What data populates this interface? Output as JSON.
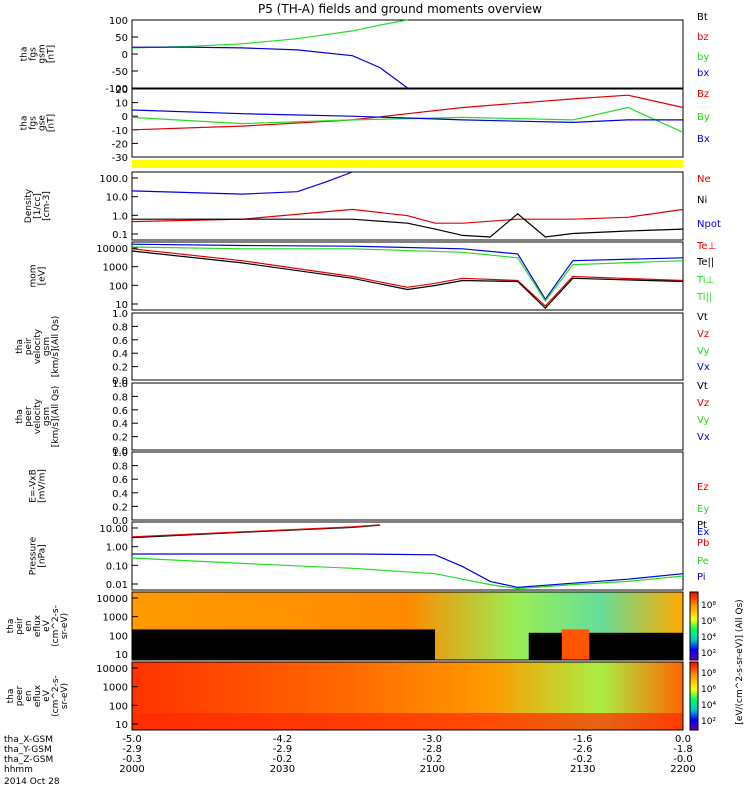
{
  "title": "P5 (TH-A) fields and ground moments overview",
  "colors": {
    "black": "#000000",
    "red": "#e00000",
    "green": "#22dd22",
    "blue": "#0000dd",
    "yellow": "#ffff00"
  },
  "chart_data": [
    {
      "type": "line",
      "id": "fgs_gsm",
      "ylabel": [
        "tha",
        "fgs",
        "gsm",
        "[nT]"
      ],
      "ylim": [
        -100,
        100
      ],
      "yticks": [
        "100",
        "50",
        "0",
        "-50",
        "-100"
      ],
      "legend": [
        "Bt",
        "bz",
        "by",
        "bx"
      ],
      "series": [
        {
          "name": "by",
          "color": "green",
          "x": [
            0,
            10,
            20,
            30,
            40,
            45,
            50
          ],
          "y": [
            18,
            22,
            30,
            45,
            68,
            85,
            100
          ]
        },
        {
          "name": "bx",
          "color": "blue",
          "x": [
            0,
            10,
            20,
            30,
            40,
            45,
            50
          ],
          "y": [
            20,
            20,
            18,
            12,
            -5,
            -40,
            -100
          ]
        }
      ]
    },
    {
      "type": "line",
      "id": "fgs_gse",
      "ylabel": [
        "tha",
        "fgs",
        "gse",
        "[nT]"
      ],
      "ylim": [
        -35,
        20
      ],
      "yticks": [
        "20",
        "10",
        "0",
        "-10",
        "-20",
        "-30"
      ],
      "legend": [
        "Bz",
        "By",
        "Bx"
      ],
      "series": [
        {
          "name": "Bz",
          "color": "red",
          "x": [
            0,
            20,
            40,
            60,
            80,
            90,
            100
          ],
          "y": [
            -13,
            -10,
            -5,
            5,
            12,
            15,
            5
          ]
        },
        {
          "name": "By",
          "color": "green",
          "x": [
            0,
            20,
            40,
            60,
            80,
            90,
            100
          ],
          "y": [
            -3,
            -8,
            -5,
            -3,
            -5,
            5,
            -15
          ]
        },
        {
          "name": "Bx",
          "color": "blue",
          "x": [
            0,
            20,
            40,
            60,
            80,
            90,
            100
          ],
          "y": [
            3,
            0,
            -2,
            -5,
            -7,
            -5,
            -5
          ]
        }
      ]
    },
    {
      "type": "line",
      "id": "density",
      "ylabel": [
        "Density",
        "[1/cc]",
        "[cm-3]"
      ],
      "yscale": "log",
      "ylim": [
        0.07,
        200
      ],
      "yticks": [
        "100.0",
        "10.0",
        "1.0",
        "0.1"
      ],
      "legend": [
        "Ne",
        "Ni",
        "Npot"
      ],
      "series": [
        {
          "name": "Npot",
          "color": "blue",
          "x": [
            0,
            20,
            30,
            35,
            40
          ],
          "y": [
            22,
            15,
            20,
            60,
            200
          ]
        },
        {
          "name": "Ne",
          "color": "red",
          "x": [
            0,
            20,
            40,
            50,
            55,
            60,
            70,
            80,
            90,
            100
          ],
          "y": [
            0.6,
            0.8,
            2.5,
            1.2,
            0.5,
            0.5,
            0.8,
            0.8,
            1.0,
            2.5
          ]
        },
        {
          "name": "Ni",
          "color": "black",
          "x": [
            0,
            20,
            40,
            50,
            55,
            60,
            65,
            70,
            75,
            80,
            90,
            100
          ],
          "y": [
            0.8,
            0.8,
            0.8,
            0.5,
            0.25,
            0.12,
            0.1,
            1.5,
            0.1,
            0.15,
            0.2,
            0.25
          ]
        }
      ]
    },
    {
      "type": "line",
      "id": "temperature",
      "ylabel": [
        "mom",
        "[eV]"
      ],
      "yscale": "log",
      "ylim": [
        10,
        10000
      ],
      "yticks": [
        "10000",
        "1000",
        "100",
        "10"
      ],
      "legend": [
        "Te⊥",
        "Te||",
        "Ti⊥",
        "Ti||"
      ],
      "series": [
        {
          "name": "Ti||",
          "color": "blue",
          "x": [
            0,
            20,
            40,
            60,
            70,
            75,
            80,
            100
          ],
          "y": [
            8000,
            7000,
            6500,
            5000,
            3000,
            30,
            1500,
            2000
          ]
        },
        {
          "name": "Ti⊥",
          "color": "green",
          "x": [
            0,
            20,
            40,
            60,
            70,
            75,
            80,
            100
          ],
          "y": [
            6000,
            5000,
            5000,
            3500,
            2000,
            25,
            1000,
            1500
          ]
        },
        {
          "name": "Te⊥",
          "color": "red",
          "x": [
            0,
            20,
            40,
            50,
            55,
            60,
            70,
            75,
            80,
            100
          ],
          "y": [
            5000,
            1500,
            300,
            100,
            150,
            250,
            200,
            15,
            300,
            200
          ]
        },
        {
          "name": "Te||",
          "color": "black",
          "x": [
            0,
            20,
            40,
            50,
            55,
            60,
            70,
            75,
            80,
            100
          ],
          "y": [
            4000,
            1200,
            250,
            80,
            120,
            200,
            180,
            12,
            250,
            180
          ]
        }
      ]
    },
    {
      "type": "line",
      "id": "peir_velocity",
      "ylabel": [
        "tha",
        "peir",
        "velocity",
        "gsm",
        "[km/s](All Qs)"
      ],
      "ylim": [
        0,
        1
      ],
      "yticks": [
        "1.0",
        "0.8",
        "0.6",
        "0.4",
        "0.2",
        "0.0"
      ],
      "legend": [
        "Vt",
        "Vz",
        "Vy",
        "Vx"
      ],
      "series": []
    },
    {
      "type": "line",
      "id": "peer_velocity",
      "ylabel": [
        "tha",
        "peer",
        "velocity",
        "gsm",
        "[km/s](All Qs)"
      ],
      "ylim": [
        0,
        1
      ],
      "yticks": [
        "1.0",
        "0.8",
        "0.6",
        "0.4",
        "0.2",
        "0.0"
      ],
      "legend": [
        "Vt",
        "Vz",
        "Vy",
        "Vx"
      ],
      "series": []
    },
    {
      "type": "line",
      "id": "exb",
      "ylabel": [
        "E=-VxB",
        "[mV/m]"
      ],
      "ylim": [
        0,
        1
      ],
      "yticks": [
        "1.0",
        "0.8",
        "0.6",
        "0.4",
        "0.2",
        "0.0"
      ],
      "legend": [
        "Ez",
        "Ey",
        "Ex"
      ],
      "series": []
    },
    {
      "type": "line",
      "id": "pressure",
      "ylabel": [
        "Pressure",
        "[nPa]"
      ],
      "yscale": "log",
      "ylim": [
        0.005,
        30
      ],
      "yticks": [
        "10.00",
        "1.00",
        "0.10",
        "0.01"
      ],
      "legend": [
        "Pt",
        "Pb",
        "Pe",
        "Pi"
      ],
      "series": [
        {
          "name": "Pt",
          "color": "black",
          "x": [
            0,
            20,
            40,
            45
          ],
          "y": [
            4,
            8,
            15,
            20
          ]
        },
        {
          "name": "Pb",
          "color": "red",
          "x": [
            0,
            20,
            40,
            45
          ],
          "y": [
            4.5,
            8.5,
            16,
            21
          ]
        },
        {
          "name": "Pi",
          "color": "blue",
          "x": [
            0,
            20,
            40,
            55,
            60,
            65,
            70,
            80,
            90,
            100
          ],
          "y": [
            0.5,
            0.5,
            0.5,
            0.45,
            0.1,
            0.015,
            0.007,
            0.012,
            0.02,
            0.04
          ]
        },
        {
          "name": "Pe",
          "color": "green",
          "x": [
            0,
            20,
            40,
            55,
            60,
            65,
            70,
            80,
            90,
            100
          ],
          "y": [
            0.3,
            0.15,
            0.08,
            0.04,
            0.02,
            0.01,
            0.006,
            0.01,
            0.015,
            0.03
          ]
        }
      ]
    },
    {
      "type": "heatmap",
      "id": "peir_spectrogram",
      "ylabel": [
        "tha",
        "peir",
        "en",
        "eflux",
        "eV",
        "(cm^2-s-",
        "sr-eV)"
      ],
      "yscale": "log",
      "yticks": [
        "10000",
        "1000",
        "100",
        "10"
      ]
    },
    {
      "type": "heatmap",
      "id": "peer_spectrogram",
      "ylabel": [
        "tha",
        "peer",
        "en",
        "eflux",
        "eV",
        "(cm^2-s-",
        "sr-eV)"
      ],
      "yscale": "log",
      "yticks": [
        "10000",
        "1000",
        "100",
        "10"
      ]
    }
  ],
  "colorbar": {
    "label": "[eV/(cm^2-s-sr-eV)] (All Qs)",
    "ticks_top": [
      "10⁸",
      "10⁶",
      "10⁴",
      "10²"
    ],
    "ticks_bottom": [
      "10⁸",
      "10⁶",
      "10⁴",
      "10²"
    ]
  },
  "xaxis": {
    "rows": [
      {
        "label": "tha_X-GSM",
        "values": [
          "-5.0",
          "-4.2",
          "-3.0",
          "-1.6",
          "0.0"
        ]
      },
      {
        "label": "tha_Y-GSM",
        "values": [
          "-2.9",
          "-2.9",
          "-2.8",
          "-2.6",
          "-1.8"
        ]
      },
      {
        "label": "tha_Z-GSM",
        "values": [
          "-0.3",
          "-0.2",
          "-0.2",
          "-0.2",
          "-0.0"
        ]
      },
      {
        "label": "hhmm",
        "values": [
          "2000",
          "2030",
          "2100",
          "2130",
          "2200"
        ]
      }
    ],
    "date": "2014 Oct 28"
  }
}
